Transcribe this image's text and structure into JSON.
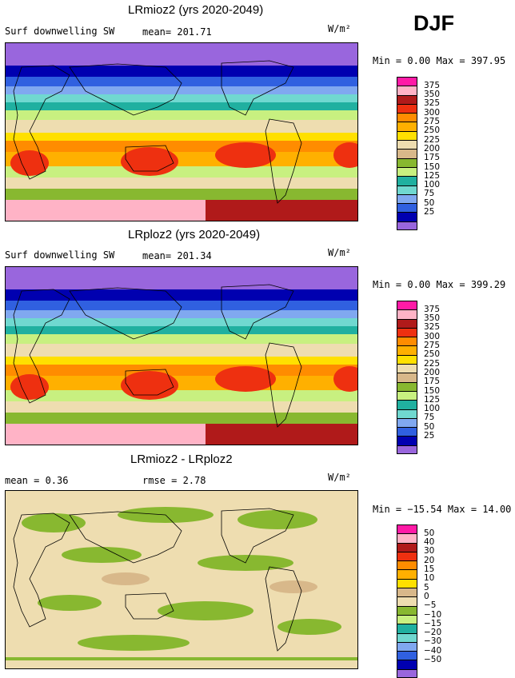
{
  "season": "DJF",
  "units": "W/m²",
  "panels": [
    {
      "title": "LRmioz2 (yrs 2020-2049)",
      "variable": "Surf downwelling SW",
      "stat_text": "mean= 201.71",
      "minmax_text": "Min =    0.00 Max = 397.95",
      "colorbar_labels": [
        "375",
        "350",
        "325",
        "300",
        "275",
        "250",
        "225",
        "200",
        "175",
        "150",
        "125",
        "100",
        "75",
        "50",
        "25"
      ],
      "colorbar_colors": [
        "#ff1aa6",
        "#ffb3c6",
        "#b01a1a",
        "#ee3010",
        "#ff8c00",
        "#ffb000",
        "#ffe000",
        "#eeddb0",
        "#d8b88a",
        "#88b830",
        "#c8f080",
        "#20b0a0",
        "#70d8d0",
        "#80a8f0",
        "#3060e0",
        "#0000b0",
        "#9966dd"
      ]
    },
    {
      "title": "LRploz2 (yrs 2020-2049)",
      "variable": "Surf downwelling SW",
      "stat_text": "mean= 201.34",
      "minmax_text": "Min =    0.00 Max = 399.29",
      "colorbar_labels": [
        "375",
        "350",
        "325",
        "300",
        "275",
        "250",
        "225",
        "200",
        "175",
        "150",
        "125",
        "100",
        "75",
        "50",
        "25"
      ],
      "colorbar_colors": [
        "#ff1aa6",
        "#ffb3c6",
        "#b01a1a",
        "#ee3010",
        "#ff8c00",
        "#ffb000",
        "#ffe000",
        "#eeddb0",
        "#d8b88a",
        "#88b830",
        "#c8f080",
        "#20b0a0",
        "#70d8d0",
        "#80a8f0",
        "#3060e0",
        "#0000b0",
        "#9966dd"
      ]
    },
    {
      "title": "LRmioz2 - LRploz2",
      "variable": "",
      "stat_text": "mean =    0.36",
      "rmse_text": "rmse =    2.78",
      "minmax_text": "Min = −15.54 Max =  14.00",
      "colorbar_labels": [
        "50",
        "40",
        "30",
        "20",
        "15",
        "10",
        "5",
        "0",
        "−5",
        "−10",
        "−15",
        "−20",
        "−30",
        "−40",
        "−50"
      ],
      "colorbar_colors": [
        "#ff1aa6",
        "#ffb3c6",
        "#b01a1a",
        "#ee3010",
        "#ff8c00",
        "#ffb000",
        "#ffe000",
        "#d8b88a",
        "#eeddb0",
        "#88b830",
        "#c8f080",
        "#20b0a0",
        "#70d8d0",
        "#80a8f0",
        "#3060e0",
        "#0000b0",
        "#9966dd"
      ]
    }
  ]
}
